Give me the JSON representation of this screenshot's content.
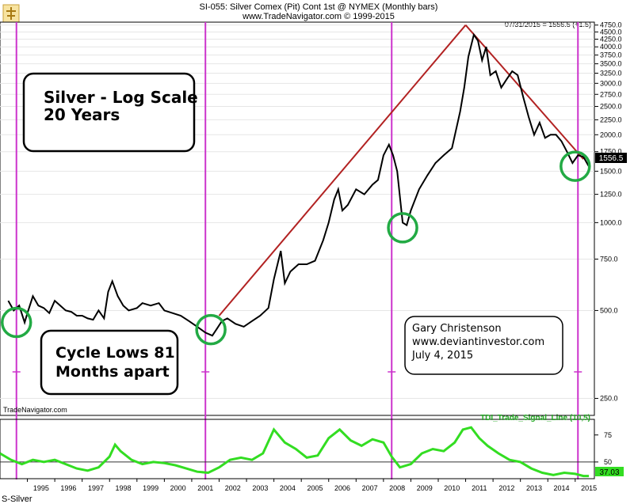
{
  "header": {
    "title": "SI-055:  Silver Comex (Pit) Cont 1st @ NYMEX  (Monthly bars)",
    "copyright": "www.TradeNavigator.com © 1999-2015",
    "last_reading": "07/31/2015 = 1556.5 (+1.5)",
    "last_value_tag": "1556.5"
  },
  "watermark": "TradeNavigator.com",
  "footer": {
    "symbol": "S-Silver"
  },
  "annotations": {
    "title_box": [
      "Silver - Log Scale",
      "20 Years"
    ],
    "cycle_box": [
      "Cycle Lows 81",
      "Months apart"
    ],
    "author_box": [
      "Gary Christenson",
      "www.deviantinvestor.com",
      "July 4, 2015"
    ]
  },
  "colors": {
    "price_line": "#000000",
    "trend_line": "#b22222",
    "cycle_line": "#cc33cc",
    "circle": "#22aa44",
    "indicator": "#33dd22",
    "value_tag_bg": "#000000",
    "indicator_tag_bg": "#33dd22"
  },
  "chart_data": [
    {
      "type": "line",
      "title": "SI-055:  Silver Comex (Pit) Cont 1st @ NYMEX  (Monthly bars)",
      "scale": "log",
      "ylim": [
        220,
        4800
      ],
      "y_ticks": [
        250.0,
        500.0,
        750.0,
        1000.0,
        1250.0,
        1500.0,
        1750.0,
        2000.0,
        2250.0,
        2500.0,
        2750.0,
        3000.0,
        3250.0,
        3500.0,
        3750.0,
        4000.0,
        4250.0,
        4500.0,
        4750.0
      ],
      "y_tick_labels": [
        "250.0",
        "500.0",
        "750.0",
        "1000.0",
        "1250.0",
        "1500.0",
        "1750.0",
        "2000.0",
        "2250.0",
        "2500.0",
        "2750.0",
        "3000.0",
        "3250.0",
        "3500.0",
        "3750.0",
        "4000.0",
        "4250.0",
        "4500.0",
        "4750.0"
      ],
      "x_tick_labels": [
        "1995",
        "1996",
        "1997",
        "1998",
        "1999",
        "2000",
        "2001",
        "2002",
        "2003",
        "2004",
        "2005",
        "2006",
        "2007",
        "2008",
        "2009",
        "2010",
        "2011",
        "2012",
        "2013",
        "2014",
        "2015"
      ],
      "series": [
        {
          "name": "",
          "x": [
            1994.3,
            1994.5,
            1994.7,
            1994.9,
            1995.0,
            1995.2,
            1995.4,
            1995.6,
            1995.8,
            1996.0,
            1996.2,
            1996.4,
            1996.6,
            1996.8,
            1997.0,
            1997.2,
            1997.4,
            1997.6,
            1997.8,
            1997.95,
            1998.1,
            1998.3,
            1998.5,
            1998.7,
            1999.0,
            1999.2,
            1999.5,
            1999.8,
            2000.0,
            2000.3,
            2000.6,
            2000.9,
            2001.2,
            2001.5,
            2001.75,
            2001.9,
            2002.1,
            2002.3,
            2002.6,
            2002.9,
            2003.2,
            2003.5,
            2003.8,
            2004.0,
            2004.25,
            2004.4,
            2004.6,
            2004.9,
            2005.2,
            2005.5,
            2005.8,
            2006.0,
            2006.2,
            2006.35,
            2006.5,
            2006.7,
            2007.0,
            2007.3,
            2007.6,
            2007.8,
            2008.0,
            2008.2,
            2008.35,
            2008.5,
            2008.7,
            2008.85,
            2009.0,
            2009.3,
            2009.6,
            2009.9,
            2010.2,
            2010.5,
            2010.8,
            2010.95,
            2011.1,
            2011.3,
            2011.45,
            2011.6,
            2011.75,
            2011.9,
            2012.1,
            2012.3,
            2012.5,
            2012.7,
            2012.9,
            2013.1,
            2013.3,
            2013.5,
            2013.7,
            2013.9,
            2014.1,
            2014.3,
            2014.5,
            2014.7,
            2014.9,
            2015.1,
            2015.3,
            2015.5
          ],
          "y": [
            540,
            500,
            520,
            455,
            490,
            560,
            520,
            510,
            490,
            540,
            520,
            500,
            495,
            480,
            480,
            470,
            465,
            500,
            470,
            580,
            630,
            560,
            520,
            500,
            510,
            530,
            520,
            530,
            500,
            490,
            480,
            460,
            440,
            420,
            410,
            430,
            460,
            470,
            450,
            440,
            460,
            480,
            510,
            640,
            800,
            620,
            680,
            720,
            720,
            740,
            870,
            1000,
            1200,
            1300,
            1100,
            1150,
            1300,
            1250,
            1350,
            1400,
            1700,
            1850,
            1700,
            1500,
            1000,
            980,
            1100,
            1300,
            1450,
            1600,
            1700,
            1800,
            2400,
            2900,
            3700,
            4400,
            4200,
            3600,
            4000,
            3200,
            3300,
            2900,
            3100,
            3300,
            3200,
            2700,
            2300,
            2000,
            2200,
            1950,
            2000,
            2000,
            1900,
            1750,
            1600,
            1700,
            1680,
            1556.5
          ]
        }
      ],
      "trend_lines": [
        {
          "from": [
            2002.0,
            480
          ],
          "to": [
            2011.0,
            4750
          ]
        },
        {
          "from": [
            2011.0,
            4750
          ],
          "to": [
            2015.3,
            1650
          ]
        }
      ],
      "cycle_markers_x": [
        1994.6,
        2001.5,
        2008.3,
        2015.1
      ],
      "circled_lows": [
        [
          1994.6,
          455
        ],
        [
          2001.7,
          430
        ],
        [
          2008.7,
          960
        ],
        [
          2015.0,
          1560
        ]
      ]
    },
    {
      "type": "line",
      "title": "TDI_Trade_Signal_Line (10,5)",
      "ylim": [
        36,
        88
      ],
      "y_ticks": [
        50,
        75
      ],
      "y_tick_labels": [
        "50",
        "75"
      ],
      "reference_line": 50,
      "last_value": "37.03",
      "series": [
        {
          "name": "TDI_Trade_Signal_Line (10,5)",
          "x": [
            1994.0,
            1994.4,
            1994.8,
            1995.2,
            1995.6,
            1996.0,
            1996.4,
            1996.8,
            1997.2,
            1997.6,
            1998.0,
            1998.2,
            1998.4,
            1998.8,
            1999.2,
            1999.6,
            2000.0,
            2000.4,
            2000.8,
            2001.2,
            2001.6,
            2002.0,
            2002.4,
            2002.8,
            2003.2,
            2003.6,
            2004.0,
            2004.4,
            2004.8,
            2005.2,
            2005.6,
            2006.0,
            2006.4,
            2006.8,
            2007.2,
            2007.6,
            2008.0,
            2008.3,
            2008.6,
            2009.0,
            2009.4,
            2009.8,
            2010.2,
            2010.6,
            2010.9,
            2011.2,
            2011.5,
            2011.8,
            2012.2,
            2012.6,
            2013.0,
            2013.4,
            2013.8,
            2014.2,
            2014.6,
            2015.0,
            2015.3,
            2015.5
          ],
          "y": [
            58,
            52,
            48,
            52,
            50,
            52,
            48,
            44,
            42,
            45,
            55,
            66,
            60,
            52,
            48,
            50,
            49,
            47,
            44,
            41,
            40,
            45,
            52,
            54,
            52,
            58,
            80,
            68,
            62,
            54,
            56,
            72,
            80,
            70,
            65,
            71,
            68,
            55,
            45,
            48,
            58,
            62,
            60,
            68,
            80,
            82,
            72,
            65,
            58,
            52,
            50,
            44,
            40,
            38,
            40,
            39,
            37,
            37.03
          ]
        }
      ]
    }
  ]
}
